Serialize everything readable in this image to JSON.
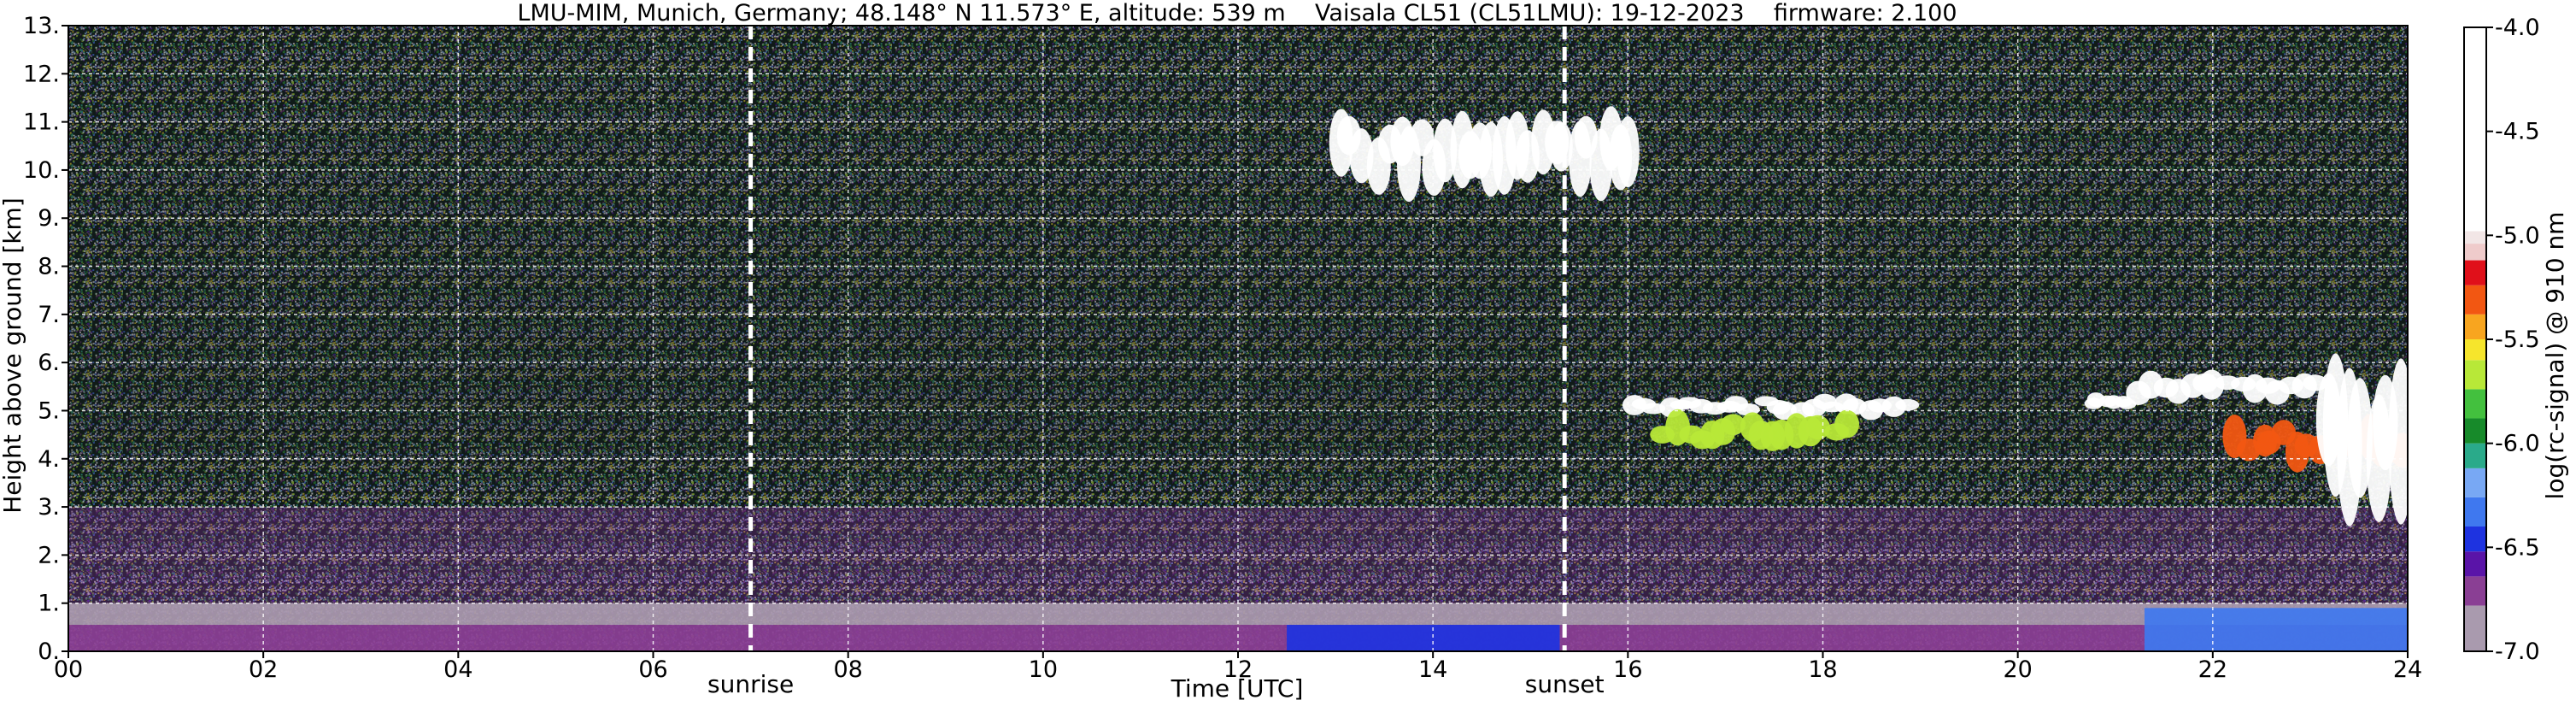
{
  "chart_data": {
    "type": "heatmap",
    "title": "LMU-MIM, Munich, Germany; 48.148° N 11.573° E, altitude: 539 m    Vaisala CL51 (CL51LMU): 19-12-2023    firmware: 2.100",
    "xlabel": "Time [UTC]",
    "ylabel": "Height above ground [km]",
    "xlim": [
      0,
      24
    ],
    "ylim": [
      0,
      13
    ],
    "x_ticks": [
      {
        "value": 0,
        "label": "00"
      },
      {
        "value": 2,
        "label": "02"
      },
      {
        "value": 4,
        "label": "04"
      },
      {
        "value": 6,
        "label": "06"
      },
      {
        "value": 8,
        "label": "08"
      },
      {
        "value": 10,
        "label": "10"
      },
      {
        "value": 12,
        "label": "12"
      },
      {
        "value": 14,
        "label": "14"
      },
      {
        "value": 16,
        "label": "16"
      },
      {
        "value": 18,
        "label": "18"
      },
      {
        "value": 20,
        "label": "20"
      },
      {
        "value": 22,
        "label": "22"
      },
      {
        "value": 24,
        "label": "24"
      }
    ],
    "y_ticks": [
      {
        "value": 0,
        "label": "0."
      },
      {
        "value": 1,
        "label": "1."
      },
      {
        "value": 2,
        "label": "2."
      },
      {
        "value": 3,
        "label": "3."
      },
      {
        "value": 4,
        "label": "4."
      },
      {
        "value": 5,
        "label": "5."
      },
      {
        "value": 6,
        "label": "6."
      },
      {
        "value": 7,
        "label": "7."
      },
      {
        "value": 8,
        "label": "8."
      },
      {
        "value": 9,
        "label": "9."
      },
      {
        "value": 10,
        "label": "10."
      },
      {
        "value": 11,
        "label": "11."
      },
      {
        "value": 12,
        "label": "12."
      },
      {
        "value": 13,
        "label": "13."
      }
    ],
    "grid": true,
    "events": [
      {
        "label": "sunrise",
        "time": 7.0
      },
      {
        "label": "sunset",
        "time": 15.35
      }
    ],
    "colorbar": {
      "label": "log(rc-signal) @ 910 nm",
      "range": [
        -7.0,
        -4.0
      ],
      "ticks": [
        {
          "value": -4.0,
          "label": "-4.0"
        },
        {
          "value": -4.5,
          "label": "-4.5"
        },
        {
          "value": -5.0,
          "label": "-5.0"
        },
        {
          "value": -5.5,
          "label": "-5.5"
        },
        {
          "value": -6.0,
          "label": "-6.0"
        },
        {
          "value": -6.5,
          "label": "-6.5"
        },
        {
          "value": -7.0,
          "label": "-7.0"
        }
      ],
      "colors": [
        {
          "from": -7.0,
          "to": -6.78,
          "color": "#a99aae"
        },
        {
          "from": -6.78,
          "to": -6.64,
          "color": "#8a3f94"
        },
        {
          "from": -6.64,
          "to": -6.52,
          "color": "#5a14a8"
        },
        {
          "from": -6.52,
          "to": -6.4,
          "color": "#1e33e0"
        },
        {
          "from": -6.4,
          "to": -6.26,
          "color": "#3f78ef"
        },
        {
          "from": -6.26,
          "to": -6.12,
          "color": "#78a8f4"
        },
        {
          "from": -6.12,
          "to": -6.0,
          "color": "#2aaa8a"
        },
        {
          "from": -6.0,
          "to": -5.88,
          "color": "#178a2a"
        },
        {
          "from": -5.88,
          "to": -5.74,
          "color": "#43c03e"
        },
        {
          "from": -5.74,
          "to": -5.6,
          "color": "#b8e838"
        },
        {
          "from": -5.6,
          "to": -5.5,
          "color": "#f6e52c"
        },
        {
          "from": -5.5,
          "to": -5.38,
          "color": "#f8a51f"
        },
        {
          "from": -5.38,
          "to": -5.24,
          "color": "#f25712"
        },
        {
          "from": -5.24,
          "to": -5.12,
          "color": "#e0101a"
        },
        {
          "from": -5.12,
          "to": -5.04,
          "color": "#efcbcb"
        },
        {
          "from": -5.04,
          "to": -4.98,
          "color": "#f2e6e6"
        },
        {
          "from": -4.98,
          "to": -4.0,
          "color": "#ffffff"
        }
      ]
    },
    "features": [
      {
        "kind": "aerosol-layer",
        "time": [
          0,
          24
        ],
        "height": [
          0,
          0.55
        ],
        "value": -6.7
      },
      {
        "kind": "aerosol-layer",
        "time": [
          0,
          24
        ],
        "height": [
          0.55,
          1.0
        ],
        "value": -6.85
      },
      {
        "kind": "boundary-layer",
        "time": [
          12.5,
          15.3
        ],
        "height": [
          0,
          0.55
        ],
        "value": -6.4
      },
      {
        "kind": "boundary-layer",
        "time": [
          21.3,
          24
        ],
        "height": [
          0,
          0.9
        ],
        "value": -6.35
      },
      {
        "kind": "cloud",
        "time": [
          13.0,
          15.3
        ],
        "height": [
          9.6,
          11.1
        ],
        "value": -4.3
      },
      {
        "kind": "cloud",
        "time": [
          15.3,
          16.1
        ],
        "height": [
          9.7,
          11.2
        ],
        "value": -4.6
      },
      {
        "kind": "cloud",
        "time": [
          16.0,
          18.9
        ],
        "height": [
          4.9,
          5.3
        ],
        "value": -4.2
      },
      {
        "kind": "cloud",
        "time": [
          16.3,
          18.3
        ],
        "height": [
          4.2,
          4.9
        ],
        "value": -5.6
      },
      {
        "kind": "cloud",
        "time": [
          20.7,
          21.2
        ],
        "height": [
          5.05,
          5.35
        ],
        "value": -4.2
      },
      {
        "kind": "cloud",
        "time": [
          21.2,
          23.1
        ],
        "height": [
          5.2,
          5.8
        ],
        "value": -4.3
      },
      {
        "kind": "cloud",
        "time": [
          22.2,
          24
        ],
        "height": [
          3.9,
          4.8
        ],
        "value": -5.3
      },
      {
        "kind": "cloud",
        "time": [
          23.1,
          24
        ],
        "height": [
          3.0,
          6.2
        ],
        "value": -4.2
      }
    ]
  }
}
